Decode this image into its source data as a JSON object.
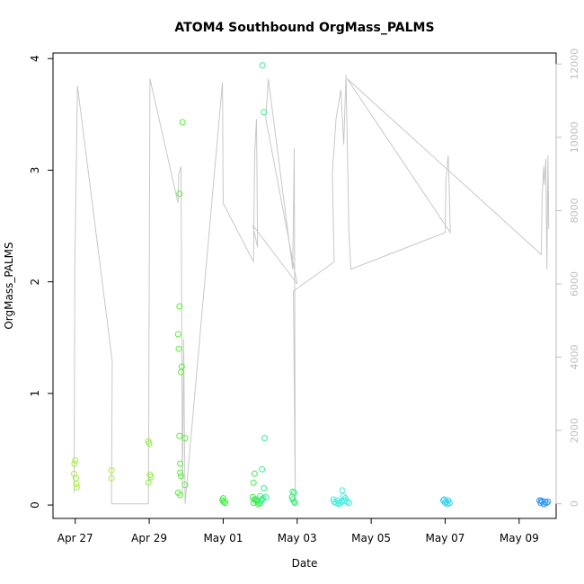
{
  "chart_data": {
    "type": "scatter",
    "title": "ATOM4 Southbound OrgMass_PALMS",
    "xlabel": "Date",
    "ylabel": "OrgMass_PALMS",
    "x_unit": "days since Apr 27",
    "xlim": [
      -0.6,
      13.0
    ],
    "ylim": [
      -0.12,
      4.05
    ],
    "x_ticks": [
      {
        "value": 0,
        "label": "Apr 27"
      },
      {
        "value": 2,
        "label": "Apr 29"
      },
      {
        "value": 4,
        "label": "May 01"
      },
      {
        "value": 6,
        "label": "May 03"
      },
      {
        "value": 8,
        "label": "May 05"
      },
      {
        "value": 10,
        "label": "May 07"
      },
      {
        "value": 12,
        "label": "May 09"
      }
    ],
    "y_ticks": [
      {
        "value": 0,
        "label": "0"
      },
      {
        "value": 1,
        "label": "1"
      },
      {
        "value": 2,
        "label": "2"
      },
      {
        "value": 3,
        "label": "3"
      },
      {
        "value": 4,
        "label": "4"
      }
    ],
    "y2lim": [
      -400,
      12300
    ],
    "y2_ticks": [
      {
        "value": 0,
        "label": "0"
      },
      {
        "value": 2000,
        "label": "2000"
      },
      {
        "value": 4000,
        "label": "4000"
      },
      {
        "value": 6000,
        "label": "6000"
      },
      {
        "value": 8000,
        "label": "8000"
      },
      {
        "value": 10000,
        "label": "10000"
      },
      {
        "value": 12000,
        "label": "12000"
      }
    ],
    "grid": false,
    "points": [
      {
        "x": -0.02,
        "y": 0.37,
        "color": "#a6ee3a"
      },
      {
        "x": 0.0,
        "y": 0.4,
        "color": "#a6ee3a"
      },
      {
        "x": -0.03,
        "y": 0.28,
        "color": "#a6ee3a"
      },
      {
        "x": 0.02,
        "y": 0.24,
        "color": "#a6ee3a"
      },
      {
        "x": 0.03,
        "y": 0.19,
        "color": "#a6ee3a"
      },
      {
        "x": 0.04,
        "y": 0.16,
        "color": "#a6ee3a"
      },
      {
        "x": 0.98,
        "y": 0.31,
        "color": "#a6ee3a"
      },
      {
        "x": 0.98,
        "y": 0.24,
        "color": "#a6ee3a"
      },
      {
        "x": 1.98,
        "y": 0.57,
        "color": "#8cee3a"
      },
      {
        "x": 2.0,
        "y": 0.55,
        "color": "#8cee3a"
      },
      {
        "x": 2.02,
        "y": 0.27,
        "color": "#8cee3a"
      },
      {
        "x": 2.05,
        "y": 0.25,
        "color": "#8cee3a"
      },
      {
        "x": 1.98,
        "y": 0.2,
        "color": "#8cee3a"
      },
      {
        "x": 2.82,
        "y": 2.79,
        "color": "#5aee3a"
      },
      {
        "x": 2.78,
        "y": 1.53,
        "color": "#5aee3a"
      },
      {
        "x": 2.8,
        "y": 1.4,
        "color": "#5aee3a"
      },
      {
        "x": 2.82,
        "y": 1.78,
        "color": "#5aee3a"
      },
      {
        "x": 2.88,
        "y": 1.24,
        "color": "#5aee3a"
      },
      {
        "x": 2.86,
        "y": 1.19,
        "color": "#5aee3a"
      },
      {
        "x": 2.82,
        "y": 0.62,
        "color": "#5aee3a"
      },
      {
        "x": 2.84,
        "y": 0.37,
        "color": "#5aee3a"
      },
      {
        "x": 2.84,
        "y": 0.29,
        "color": "#5aee3a"
      },
      {
        "x": 2.86,
        "y": 0.26,
        "color": "#5aee3a"
      },
      {
        "x": 2.78,
        "y": 0.11,
        "color": "#5aee3a"
      },
      {
        "x": 2.84,
        "y": 0.09,
        "color": "#5aee3a"
      },
      {
        "x": 2.97,
        "y": 0.6,
        "color": "#5aee3a"
      },
      {
        "x": 2.97,
        "y": 0.18,
        "color": "#5aee3a"
      },
      {
        "x": 2.9,
        "y": 3.43,
        "color": "#5aee3a"
      },
      {
        "x": 4.0,
        "y": 0.06,
        "color": "#3aee3a"
      },
      {
        "x": 4.02,
        "y": 0.03,
        "color": "#3aee3a"
      },
      {
        "x": 4.05,
        "y": 0.02,
        "color": "#3aee3a"
      },
      {
        "x": 3.98,
        "y": 0.04,
        "color": "#3aee3a"
      },
      {
        "x": 4.85,
        "y": 0.28,
        "color": "#3aee4a"
      },
      {
        "x": 4.82,
        "y": 0.2,
        "color": "#3aee4a"
      },
      {
        "x": 4.8,
        "y": 0.07,
        "color": "#3aee4a"
      },
      {
        "x": 4.84,
        "y": 0.05,
        "color": "#3aee4a"
      },
      {
        "x": 4.9,
        "y": 0.04,
        "color": "#3aee4a"
      },
      {
        "x": 4.82,
        "y": 0.02,
        "color": "#3aee4a"
      },
      {
        "x": 4.92,
        "y": 0.03,
        "color": "#3aee4a"
      },
      {
        "x": 4.95,
        "y": 0.01,
        "color": "#3aee4a"
      },
      {
        "x": 5.0,
        "y": 0.02,
        "color": "#3aee4a"
      },
      {
        "x": 4.88,
        "y": 0.05,
        "color": "#3aee4a"
      },
      {
        "x": 5.06,
        "y": 3.94,
        "color": "#3aee8e"
      },
      {
        "x": 5.1,
        "y": 3.52,
        "color": "#3aee8e"
      },
      {
        "x": 5.12,
        "y": 0.6,
        "color": "#3aee8e"
      },
      {
        "x": 5.05,
        "y": 0.32,
        "color": "#3aee8e"
      },
      {
        "x": 5.1,
        "y": 0.15,
        "color": "#3aee8e"
      },
      {
        "x": 5.0,
        "y": 0.08,
        "color": "#3aee8e"
      },
      {
        "x": 5.05,
        "y": 0.05,
        "color": "#3aee8e"
      },
      {
        "x": 5.08,
        "y": 0.06,
        "color": "#3aee8e"
      },
      {
        "x": 5.15,
        "y": 0.07,
        "color": "#3aee8e"
      },
      {
        "x": 5.03,
        "y": 0.04,
        "color": "#3aee8e"
      },
      {
        "x": 5.88,
        "y": 0.12,
        "color": "#3aee7a"
      },
      {
        "x": 5.92,
        "y": 0.11,
        "color": "#3aee7a"
      },
      {
        "x": 5.86,
        "y": 0.07,
        "color": "#3aee7a"
      },
      {
        "x": 5.88,
        "y": 0.05,
        "color": "#3aee7a"
      },
      {
        "x": 5.92,
        "y": 0.03,
        "color": "#3aee7a"
      },
      {
        "x": 5.94,
        "y": 0.02,
        "color": "#3aee7a"
      },
      {
        "x": 6.98,
        "y": 0.05,
        "color": "#3aeede"
      },
      {
        "x": 7.0,
        "y": 0.03,
        "color": "#3aeede"
      },
      {
        "x": 7.05,
        "y": 0.02,
        "color": "#3aeede"
      },
      {
        "x": 7.1,
        "y": 0.04,
        "color": "#3aeede"
      },
      {
        "x": 7.15,
        "y": 0.02,
        "color": "#3aeede"
      },
      {
        "x": 7.2,
        "y": 0.03,
        "color": "#3aeede"
      },
      {
        "x": 7.22,
        "y": 0.13,
        "color": "#3aeede"
      },
      {
        "x": 7.25,
        "y": 0.08,
        "color": "#3aeede"
      },
      {
        "x": 7.28,
        "y": 0.04,
        "color": "#3aeede"
      },
      {
        "x": 7.3,
        "y": 0.06,
        "color": "#3aeede"
      },
      {
        "x": 7.35,
        "y": 0.03,
        "color": "#3aeede"
      },
      {
        "x": 7.4,
        "y": 0.02,
        "color": "#3aeede"
      },
      {
        "x": 7.12,
        "y": 0.01,
        "color": "#3aeede"
      },
      {
        "x": 9.95,
        "y": 0.04,
        "color": "#3ad2ee"
      },
      {
        "x": 10.0,
        "y": 0.02,
        "color": "#3ad2ee"
      },
      {
        "x": 10.03,
        "y": 0.03,
        "color": "#3ad2ee"
      },
      {
        "x": 10.06,
        "y": 0.01,
        "color": "#3ad2ee"
      },
      {
        "x": 10.08,
        "y": 0.04,
        "color": "#3ad2ee"
      },
      {
        "x": 10.12,
        "y": 0.02,
        "color": "#3ad2ee"
      },
      {
        "x": 9.98,
        "y": 0.05,
        "color": "#3ad2ee"
      },
      {
        "x": 12.55,
        "y": 0.04,
        "color": "#3a9aee"
      },
      {
        "x": 12.58,
        "y": 0.02,
        "color": "#3a9aee"
      },
      {
        "x": 12.62,
        "y": 0.03,
        "color": "#3a9aee"
      },
      {
        "x": 12.66,
        "y": 0.01,
        "color": "#3a9aee"
      },
      {
        "x": 12.7,
        "y": 0.03,
        "color": "#3a9aee"
      },
      {
        "x": 12.74,
        "y": 0.02,
        "color": "#3a9aee"
      },
      {
        "x": 12.78,
        "y": 0.03,
        "color": "#3a9aee"
      },
      {
        "x": 12.6,
        "y": 0.04,
        "color": "#3a9aee"
      },
      {
        "x": 12.68,
        "y": 0.01,
        "color": "#3a9aee"
      }
    ],
    "line_color": "#c8c8c8",
    "line": [
      [
        -0.03,
        300
      ],
      [
        -0.01,
        6500
      ],
      [
        0.06,
        11400
      ],
      [
        1.0,
        3900
      ],
      [
        0.98,
        0
      ],
      [
        1.98,
        0
      ],
      [
        2.02,
        11600
      ],
      [
        2.78,
        8200
      ],
      [
        2.8,
        9000
      ],
      [
        2.86,
        9200
      ],
      [
        2.9,
        200
      ],
      [
        2.93,
        4500
      ],
      [
        2.97,
        0
      ],
      [
        3.98,
        11500
      ],
      [
        4.0,
        8200
      ],
      [
        4.82,
        6600
      ],
      [
        4.85,
        9500
      ],
      [
        4.9,
        10500
      ],
      [
        4.93,
        7000
      ],
      [
        4.8,
        7600
      ],
      [
        6.0,
        6000
      ],
      [
        5.15,
        10500
      ],
      [
        5.22,
        11600
      ],
      [
        5.88,
        6400
      ],
      [
        5.92,
        9700
      ],
      [
        5.95,
        0
      ],
      [
        5.9,
        5800
      ],
      [
        7.0,
        6600
      ],
      [
        6.95,
        9000
      ],
      [
        7.05,
        10500
      ],
      [
        7.18,
        11300
      ],
      [
        7.26,
        9800
      ],
      [
        7.32,
        11700
      ],
      [
        7.4,
        7400
      ],
      [
        7.45,
        6400
      ],
      [
        10.0,
        7400
      ],
      [
        10.02,
        8800
      ],
      [
        10.08,
        9500
      ],
      [
        10.1,
        9000
      ],
      [
        10.14,
        7400
      ],
      [
        7.35,
        11600
      ],
      [
        12.6,
        6800
      ],
      [
        12.62,
        8400
      ],
      [
        12.66,
        9200
      ],
      [
        12.68,
        8700
      ],
      [
        12.72,
        9400
      ],
      [
        12.75,
        6400
      ],
      [
        12.78,
        9500
      ],
      [
        12.8,
        7500
      ]
    ]
  }
}
